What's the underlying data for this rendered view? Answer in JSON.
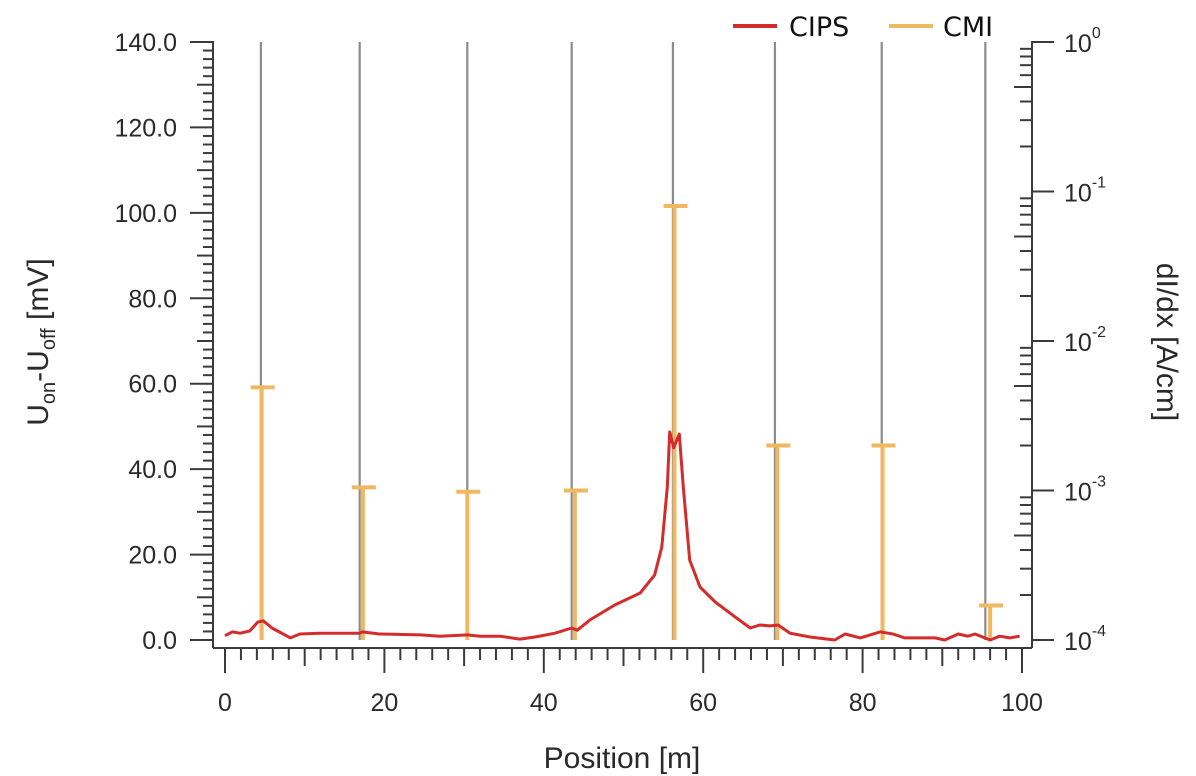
{
  "chart_data": {
    "type": "line",
    "title": "",
    "xlabel": "Position [m]",
    "ylabel_left": {
      "main": "U",
      "sub1": "on",
      "dash": "-U",
      "sub2": "off",
      "unit": " [mV]"
    },
    "ylabel_right": "dI/dx [A/cm]",
    "xlim": [
      0,
      100
    ],
    "ylim_left": [
      0,
      140
    ],
    "ylim_right": [
      0.0001,
      1
    ],
    "right_scale": "log",
    "grid": false,
    "legend_position": "top-right",
    "x_ticks": [
      "0",
      "20",
      "40",
      "60",
      "80",
      "100"
    ],
    "x_tick_values": [
      0,
      20,
      40,
      60,
      80,
      100
    ],
    "y_left_ticks": [
      "0.0",
      "20.0",
      "40.0",
      "60.0",
      "80.0",
      "100.0",
      "120.0",
      "140.0"
    ],
    "y_left_tick_values": [
      0,
      20,
      40,
      60,
      80,
      100,
      120,
      140
    ],
    "y_right_ticks": [
      {
        "base": "10",
        "exp": "0",
        "value": 1
      },
      {
        "base": "10",
        "exp": "-1",
        "value": 0.1
      },
      {
        "base": "10",
        "exp": "-2",
        "value": 0.01
      },
      {
        "base": "10",
        "exp": "-3",
        "value": 0.001
      },
      {
        "base": "10",
        "exp": "-4",
        "value": 0.0001
      }
    ],
    "series": [
      {
        "name": "CIPS",
        "axis": "left",
        "color": "#d42b2b",
        "x": [
          0,
          0.9,
          1.9,
          3.1,
          4.1,
          4.8,
          5.9,
          8.2,
          9.4,
          11.9,
          14.4,
          16.9,
          17.2,
          19.4,
          24.5,
          27.0,
          30.4,
          32.0,
          34.5,
          37.0,
          38.9,
          41.4,
          43.5,
          44.2,
          45.8,
          48.9,
          52.1,
          53.9,
          54.8,
          55.5,
          55.8,
          56.3,
          57.0,
          57.5,
          58.3,
          59.6,
          61.5,
          64.0,
          65.9,
          67.1,
          68.4,
          69.4,
          70.9,
          73.4,
          76.5,
          77.8,
          79.7,
          82.2,
          83.8,
          85.3,
          89.1,
          90.3,
          92.0,
          93.2,
          94.1,
          96.0,
          97.2,
          98.5,
          99.7
        ],
        "values": [
          1.0,
          1.9,
          1.6,
          2.1,
          4.2,
          4.5,
          2.8,
          0.5,
          1.4,
          1.6,
          1.6,
          1.6,
          1.9,
          1.4,
          1.2,
          0.9,
          1.2,
          0.9,
          0.9,
          0.2,
          0.7,
          1.6,
          2.8,
          2.3,
          4.7,
          8.2,
          11.0,
          15.2,
          21.8,
          35.8,
          48.7,
          45.0,
          48.2,
          35.8,
          18.7,
          12.4,
          8.9,
          5.4,
          2.8,
          3.5,
          3.3,
          3.5,
          1.6,
          0.7,
          0.0,
          1.4,
          0.5,
          1.9,
          1.4,
          0.5,
          0.5,
          0.0,
          1.4,
          0.9,
          1.4,
          0.0,
          0.9,
          0.5,
          0.9
        ]
      },
      {
        "name": "CMI",
        "axis": "right",
        "color": "#f0b860",
        "type": "bar",
        "x": [
          4.6,
          17.3,
          30.4,
          43.9,
          56.4,
          69.3,
          82.5,
          96.0
        ],
        "values": [
          0.0049,
          0.00105,
          0.00098,
          0.001,
          0.08,
          0.002,
          0.002,
          0.00017
        ]
      }
    ],
    "reference_lines": {
      "color": "#8c8c8c",
      "x": [
        4.5,
        16.9,
        30.4,
        43.5,
        56.2,
        69.0,
        82.4,
        95.4
      ]
    }
  },
  "legend": [
    {
      "label": "CIPS",
      "color": "#d42b2b"
    },
    {
      "label": "CMI",
      "color": "#f0b860"
    }
  ]
}
